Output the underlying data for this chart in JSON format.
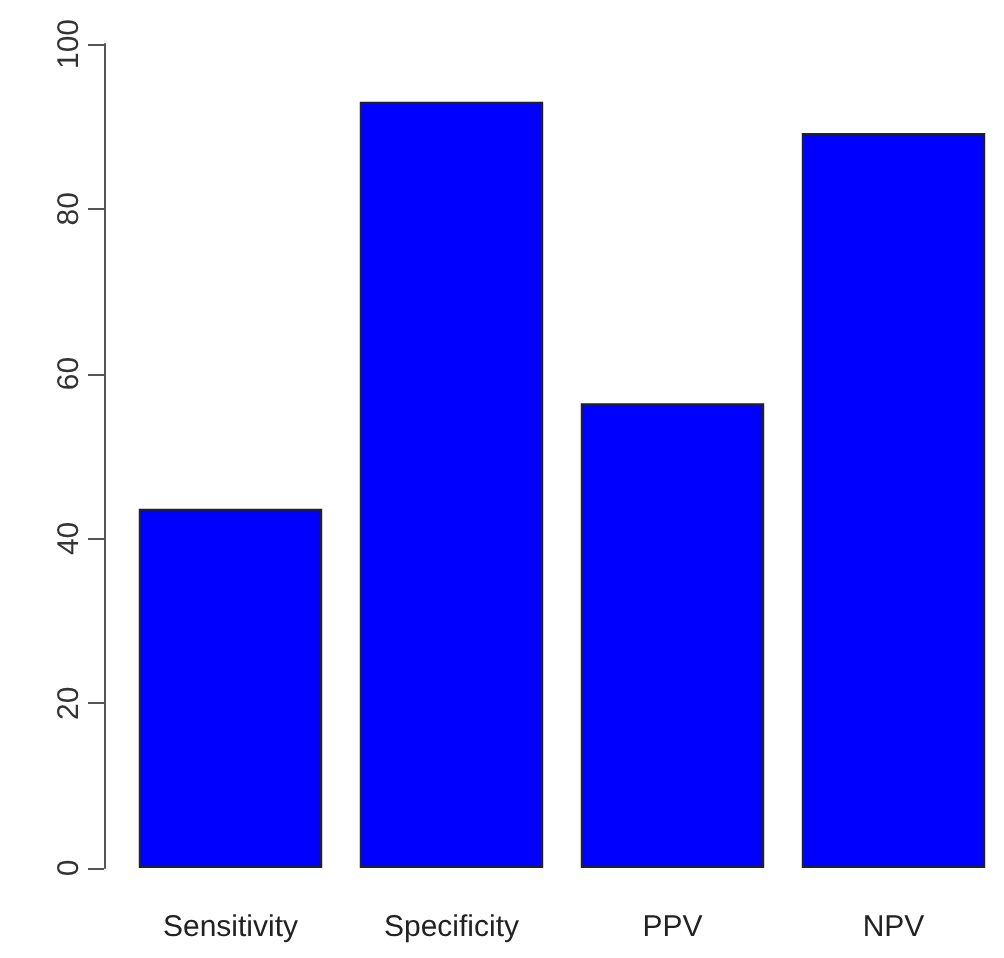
{
  "chart_data": {
    "type": "bar",
    "categories": [
      "Sensitivity",
      "Specificity",
      "PPV",
      "NPV"
    ],
    "values": [
      43.6,
      93.0,
      56.4,
      89.2
    ],
    "color": "#0000ff",
    "ylim": [
      0,
      100
    ],
    "yticks": [
      0,
      20,
      40,
      60,
      80,
      100
    ],
    "grid": false
  }
}
